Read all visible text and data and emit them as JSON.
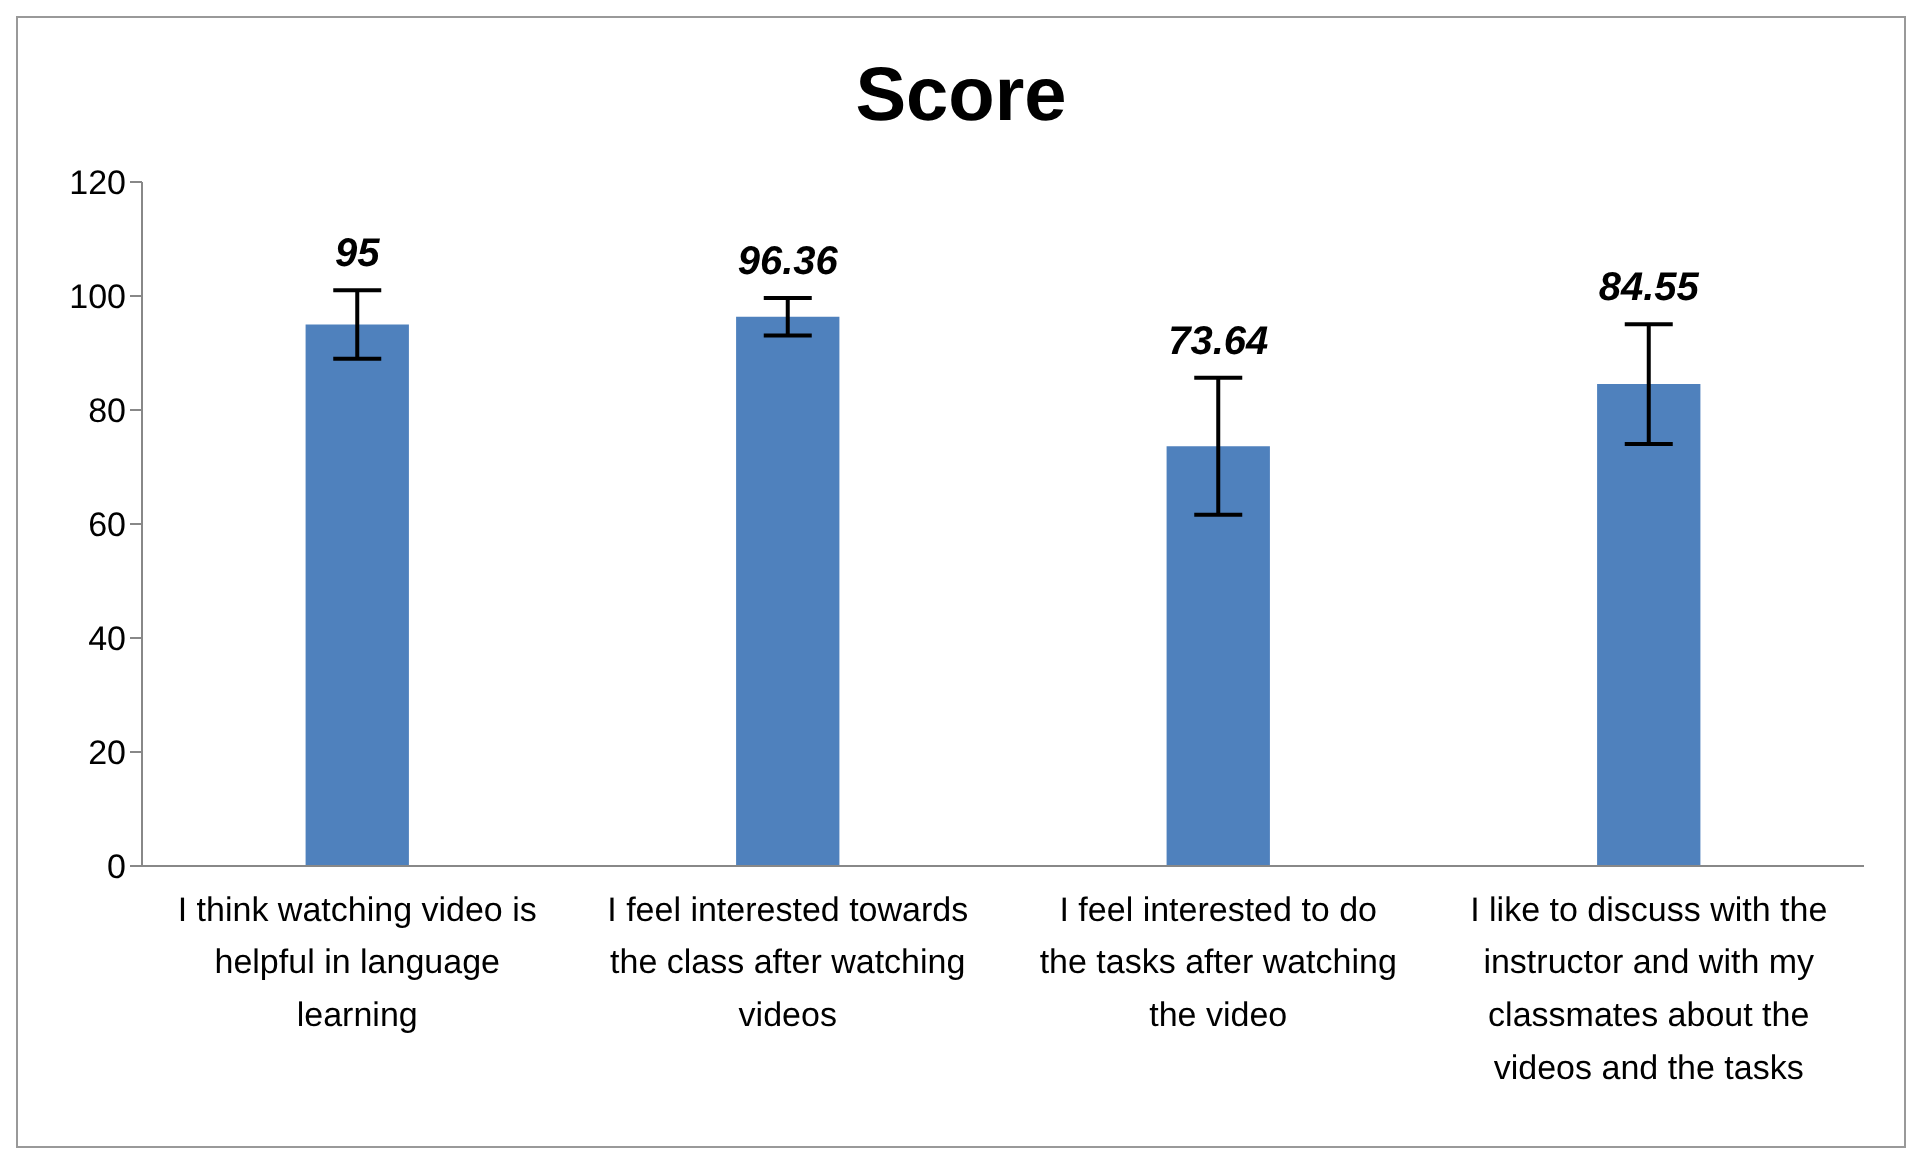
{
  "chart_data": {
    "type": "bar",
    "title": "Score",
    "categories": [
      "I think watching video is helpful in language learning",
      "I feel interested towards the class after watching videos",
      "I feel interested to do the tasks after watching the video",
      "I like to discuss with the instructor and with my classmates about the videos and the tasks"
    ],
    "values": [
      95,
      96.36,
      73.64,
      84.55
    ],
    "errors": [
      6,
      3.3,
      12,
      10.5
    ],
    "color": "#4f81bd",
    "data_labels": true,
    "ylim": [
      0,
      120
    ],
    "yticks": [
      0,
      20,
      40,
      60,
      80,
      100,
      120
    ],
    "grid": false,
    "legend": false
  }
}
